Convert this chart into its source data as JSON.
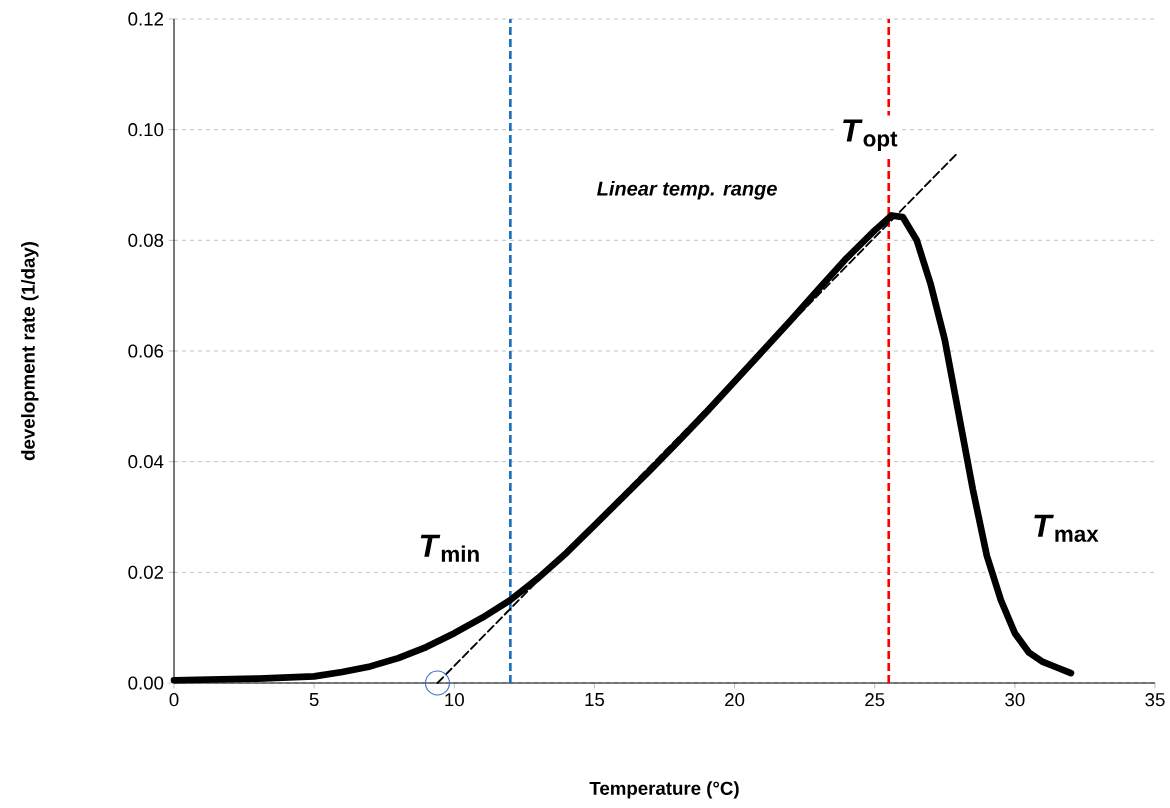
{
  "chart_data": {
    "type": "line",
    "xlabel": "Temperature (°C)",
    "ylabel": "development rate (1/day)",
    "xlim": [
      0,
      35
    ],
    "ylim": [
      0,
      0.12
    ],
    "xticks": [
      0,
      5,
      10,
      15,
      20,
      25,
      30,
      35
    ],
    "yticks": [
      {
        "value": 0,
        "label": "0.00"
      },
      {
        "value": 0.02,
        "label": "0.02"
      },
      {
        "value": 0.04,
        "label": "0.04"
      },
      {
        "value": 0.06,
        "label": "0.06"
      },
      {
        "value": 0.08,
        "label": "0.08"
      },
      {
        "value": 0.1,
        "label": "0.10"
      },
      {
        "value": 0.12,
        "label": "0.12"
      }
    ],
    "grid": "y",
    "series": [
      {
        "color": "#000000",
        "line_style": "solid",
        "x": [
          0,
          3,
          5,
          6,
          7,
          8,
          9,
          10,
          11,
          12,
          13,
          14,
          15,
          16,
          17,
          18,
          19,
          20,
          21,
          22,
          23,
          24,
          25,
          25.6,
          26,
          26.5,
          27,
          27.5,
          28,
          28.5,
          29,
          29.5,
          30,
          30.5,
          31,
          31.5,
          32
        ],
        "values": [
          0.0005,
          0.0008,
          0.0012,
          0.002,
          0.003,
          0.0045,
          0.0065,
          0.009,
          0.0118,
          0.015,
          0.019,
          0.0235,
          0.0285,
          0.0335,
          0.0385,
          0.0437,
          0.049,
          0.0545,
          0.06,
          0.0655,
          0.0712,
          0.0768,
          0.0818,
          0.0845,
          0.0842,
          0.08,
          0.072,
          0.062,
          0.0485,
          0.035,
          0.023,
          0.015,
          0.009,
          0.0055,
          0.0038,
          0.0028,
          0.0018
        ]
      },
      {
        "color": "#000000",
        "line_style": "dashed",
        "x": [
          9.4,
          27.9
        ],
        "values": [
          0,
          0.0955
        ]
      },
      {
        "type": "scatter",
        "color": "#4472c4",
        "marker": "circle",
        "x": [
          9.4
        ],
        "values": [
          0
        ]
      }
    ],
    "ref_lines": [
      {
        "axis": "x",
        "value": 12,
        "color": "#1f6fc0",
        "line_style": "dashed"
      },
      {
        "axis": "x",
        "value": 25.5,
        "color": "#ff0000",
        "line_style": "dashed"
      }
    ],
    "annotations": [
      "*T*$_{min}$",
      "*T*$_{opt}$",
      "*T*$_{max}$",
      "*Linear temp. range*"
    ]
  }
}
